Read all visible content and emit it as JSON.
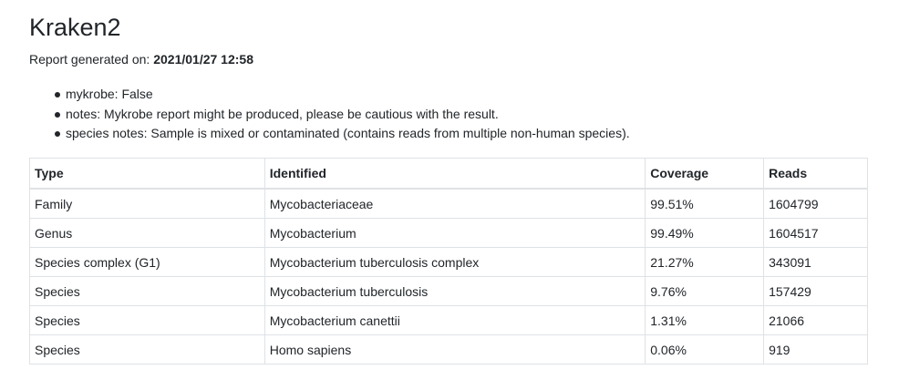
{
  "title": "Kraken2",
  "generated": {
    "label": "Report generated on:",
    "value": "2021/01/27 12:58"
  },
  "notes": [
    "mykrobe: False",
    "notes: Mykrobe report might be produced, please be cautious with the result.",
    "species notes: Sample is mixed or contaminated (contains reads from multiple non-human species)."
  ],
  "table": {
    "headers": [
      "Type",
      "Identified",
      "Coverage",
      "Reads"
    ],
    "rows": [
      [
        "Family",
        "Mycobacteriaceae",
        "99.51%",
        "1604799"
      ],
      [
        "Genus",
        "Mycobacterium",
        "99.49%",
        "1604517"
      ],
      [
        "Species complex (G1)",
        "Mycobacterium tuberculosis complex",
        "21.27%",
        "343091"
      ],
      [
        "Species",
        "Mycobacterium tuberculosis",
        "9.76%",
        "157429"
      ],
      [
        "Species",
        "Mycobacterium canettii",
        "1.31%",
        "21066"
      ],
      [
        "Species",
        "Homo sapiens",
        "0.06%",
        "919"
      ]
    ]
  }
}
